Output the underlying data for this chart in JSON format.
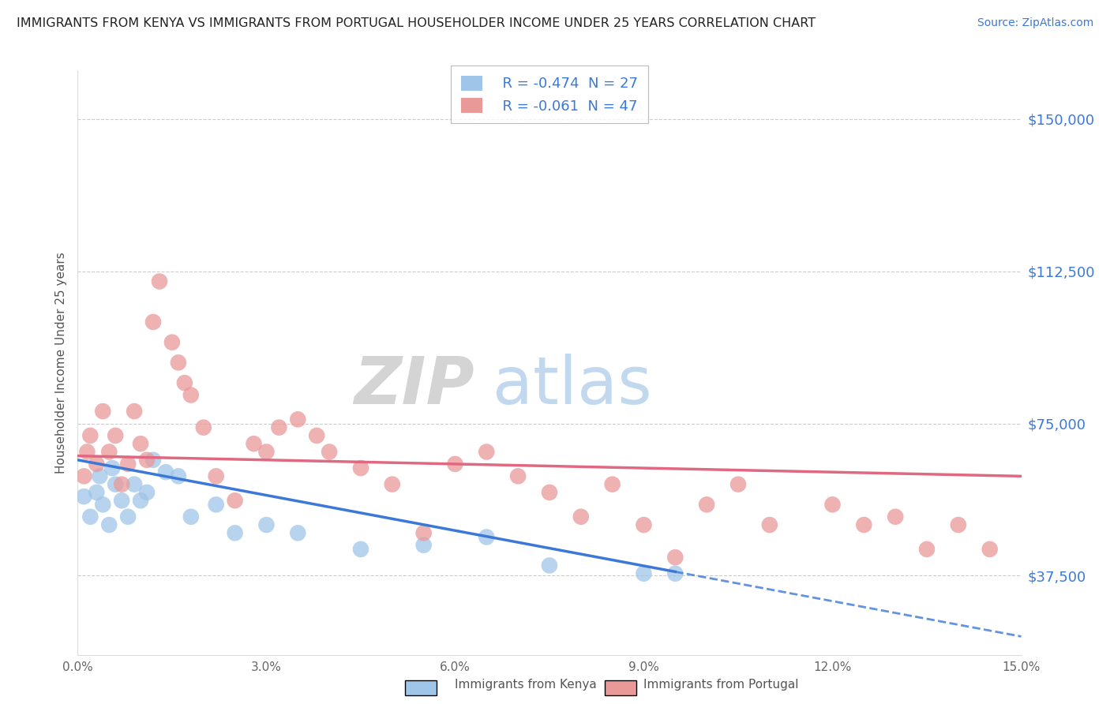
{
  "title": "IMMIGRANTS FROM KENYA VS IMMIGRANTS FROM PORTUGAL HOUSEHOLDER INCOME UNDER 25 YEARS CORRELATION CHART",
  "source": "Source: ZipAtlas.com",
  "ylabel": "Householder Income Under 25 years",
  "xlabel_vals": [
    0.0,
    3.0,
    6.0,
    9.0,
    12.0,
    15.0
  ],
  "ytick_labels": [
    "$37,500",
    "$75,000",
    "$112,500",
    "$150,000"
  ],
  "ytick_vals": [
    37500,
    75000,
    112500,
    150000
  ],
  "xlim": [
    0.0,
    15.0
  ],
  "ylim": [
    18000,
    162000
  ],
  "kenya_R": -0.474,
  "kenya_N": 27,
  "portugal_R": -0.061,
  "portugal_N": 47,
  "legend_kenya": "Immigrants from Kenya",
  "legend_portugal": "Immigrants from Portugal",
  "kenya_color": "#9fc5e8",
  "portugal_color": "#ea9999",
  "trendline_kenya_color": "#3c78d8",
  "trendline_portugal_color": "#e06880",
  "kenya_x": [
    0.1,
    0.2,
    0.3,
    0.35,
    0.4,
    0.5,
    0.55,
    0.6,
    0.7,
    0.8,
    0.9,
    1.0,
    1.1,
    1.2,
    1.4,
    1.6,
    1.8,
    2.2,
    2.5,
    3.0,
    3.5,
    4.5,
    5.5,
    6.5,
    7.5,
    9.0,
    9.5
  ],
  "kenya_y": [
    57000,
    52000,
    58000,
    62000,
    55000,
    50000,
    64000,
    60000,
    56000,
    52000,
    60000,
    56000,
    58000,
    66000,
    63000,
    62000,
    52000,
    55000,
    48000,
    50000,
    48000,
    44000,
    45000,
    47000,
    40000,
    38000,
    38000
  ],
  "portugal_x": [
    0.1,
    0.15,
    0.2,
    0.3,
    0.4,
    0.5,
    0.6,
    0.7,
    0.8,
    0.9,
    1.0,
    1.1,
    1.2,
    1.3,
    1.5,
    1.6,
    1.7,
    1.8,
    2.0,
    2.2,
    2.5,
    2.8,
    3.0,
    3.2,
    3.5,
    3.8,
    4.0,
    4.5,
    5.0,
    5.5,
    6.0,
    6.5,
    7.0,
    7.5,
    8.0,
    8.5,
    9.0,
    9.5,
    10.0,
    10.5,
    11.0,
    12.0,
    12.5,
    13.0,
    13.5,
    14.0,
    14.5
  ],
  "portugal_y": [
    62000,
    68000,
    72000,
    65000,
    78000,
    68000,
    72000,
    60000,
    65000,
    78000,
    70000,
    66000,
    100000,
    110000,
    95000,
    90000,
    85000,
    82000,
    74000,
    62000,
    56000,
    70000,
    68000,
    74000,
    76000,
    72000,
    68000,
    64000,
    60000,
    48000,
    65000,
    68000,
    62000,
    58000,
    52000,
    60000,
    50000,
    42000,
    55000,
    60000,
    50000,
    55000,
    50000,
    52000,
    44000,
    50000,
    44000
  ],
  "kenya_trend_x0": 0.0,
  "kenya_trend_y0": 66000,
  "kenya_trend_x1": 10.0,
  "kenya_trend_y1": 37000,
  "portugal_trend_x0": 0.0,
  "portugal_trend_y0": 67000,
  "portugal_trend_x1": 15.0,
  "portugal_trend_y1": 62000
}
